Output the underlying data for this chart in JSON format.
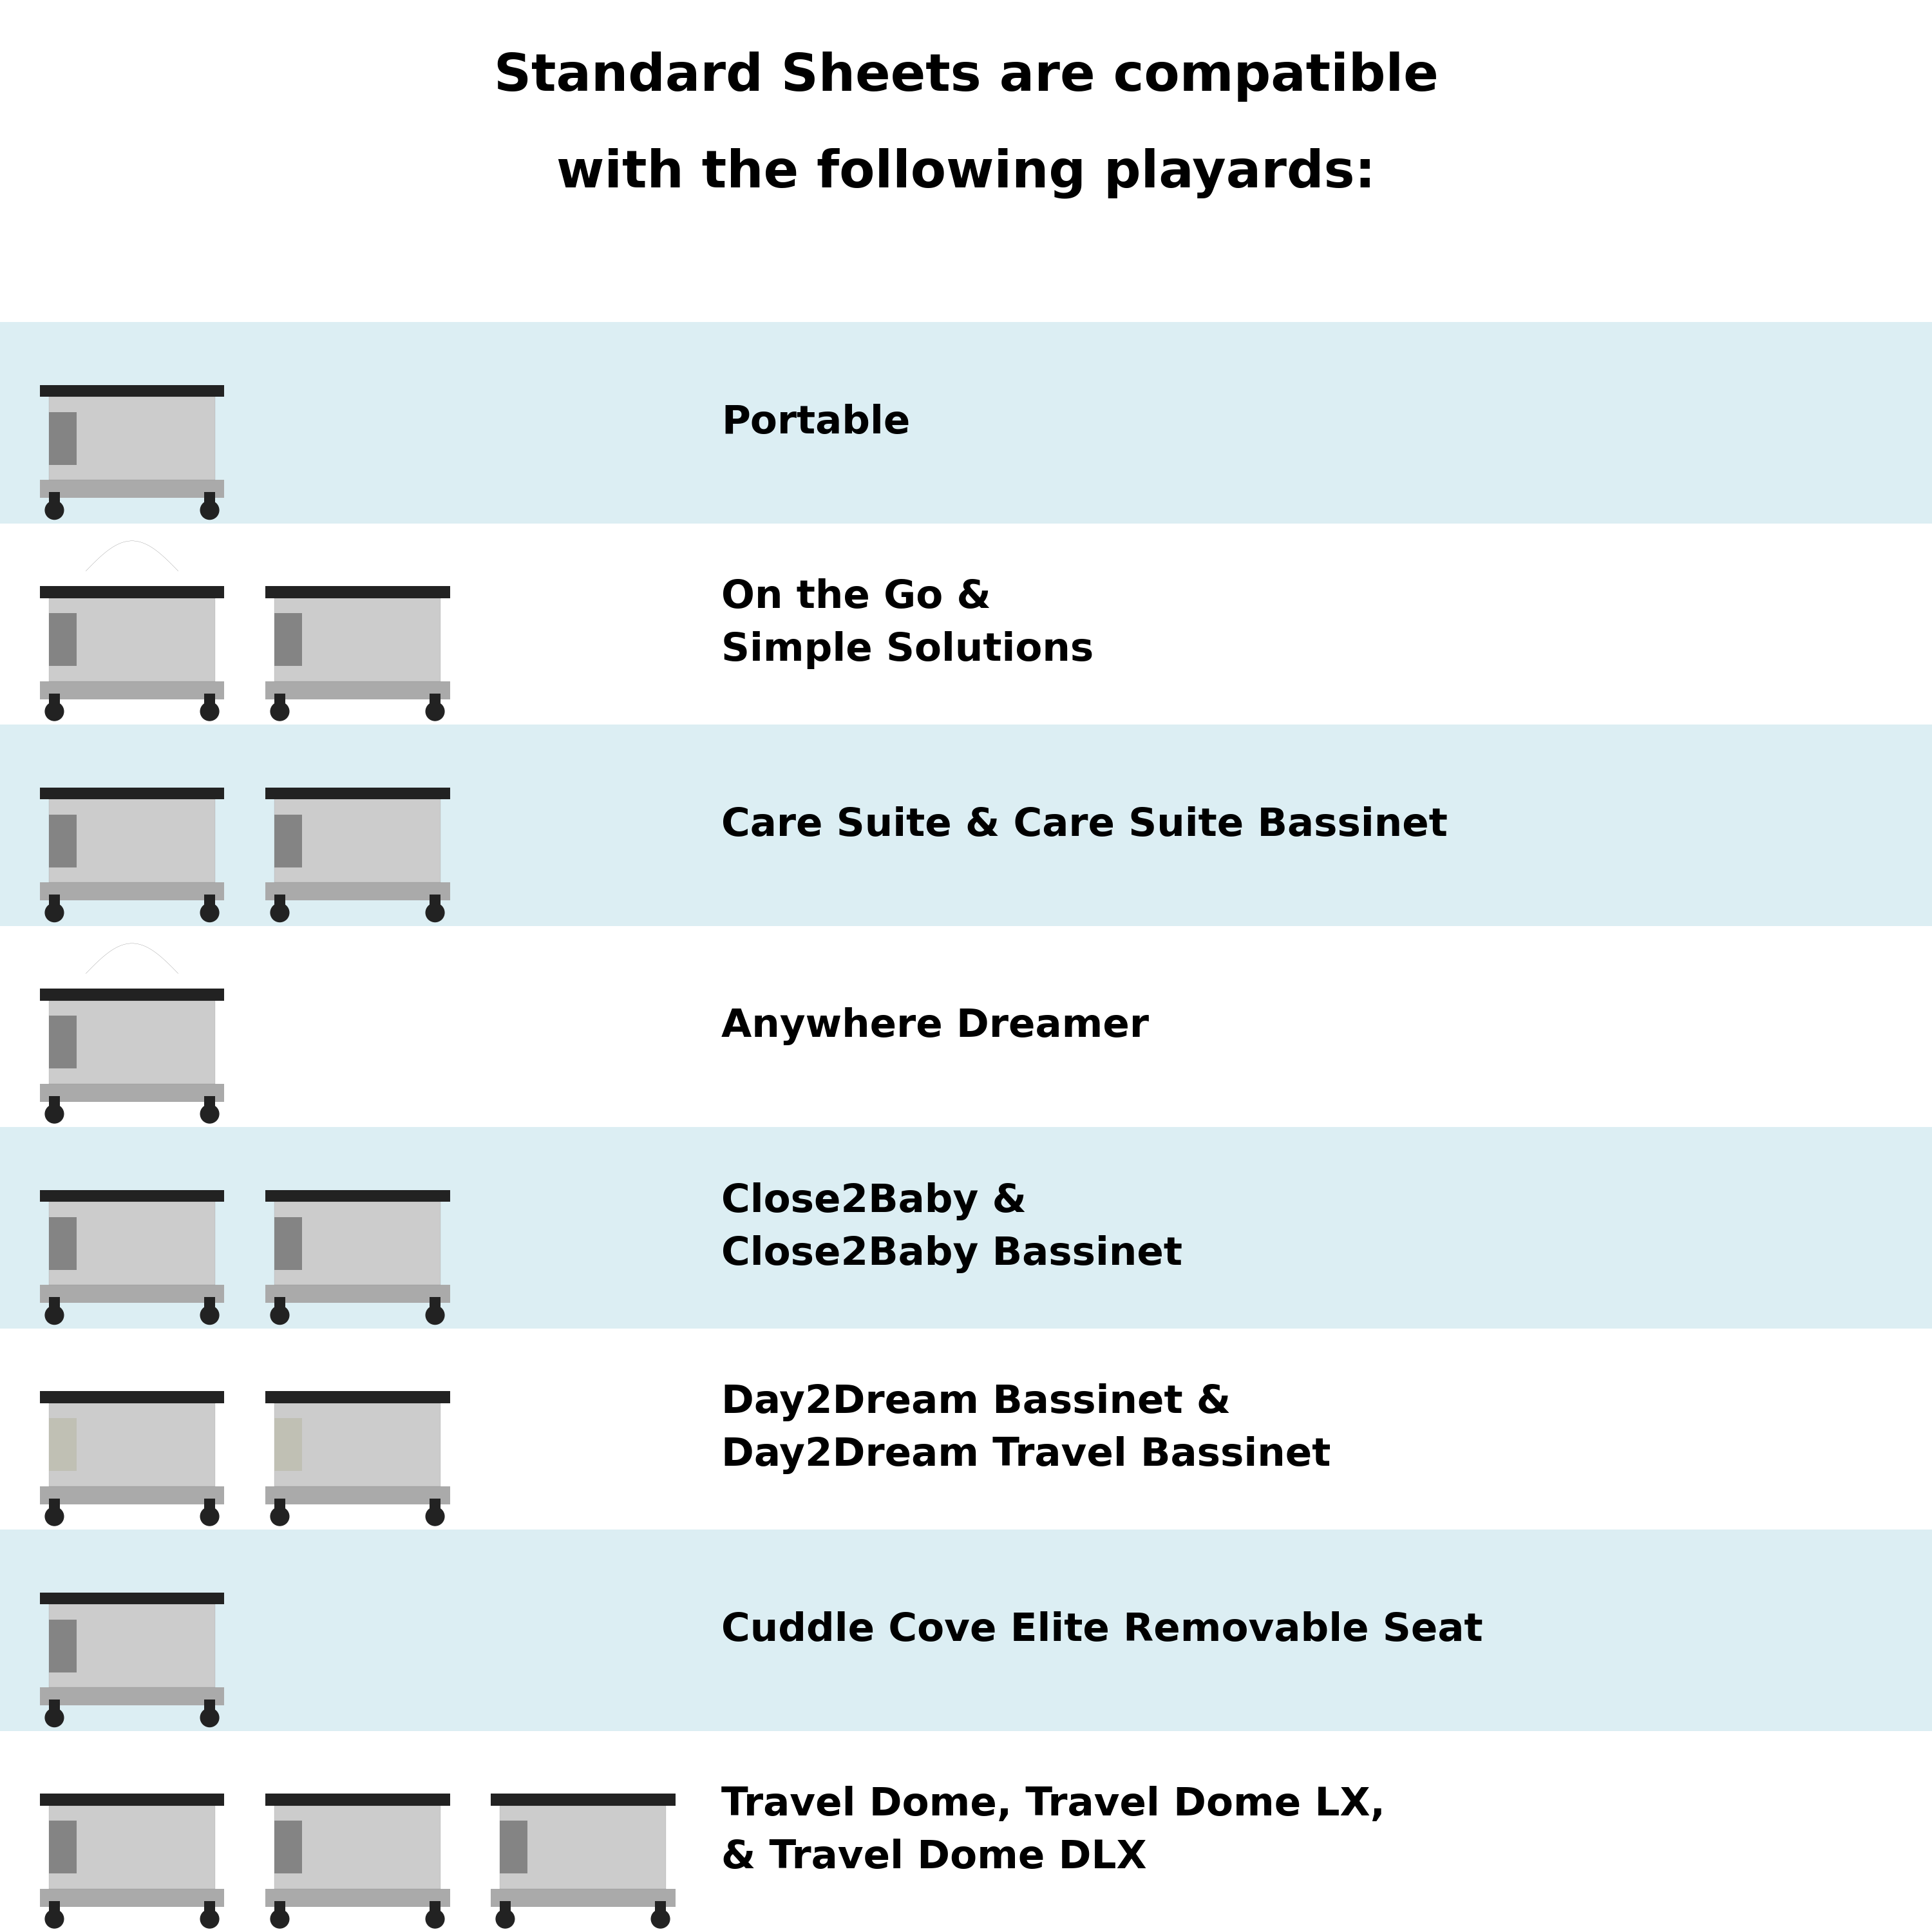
{
  "title_line1": "Standard Sheets are compatible",
  "title_line2": "with the following playards:",
  "title_fontsize": 58,
  "title_fontweight": "bold",
  "label_fontsize": 44,
  "bg_color": "#ffffff",
  "row_bg_colors": [
    "#dceef3",
    "#ffffff",
    "#dceef3",
    "#ffffff",
    "#dceef3",
    "#ffffff",
    "#dceef3",
    "#ffffff"
  ],
  "rows": [
    {
      "label": "Portable",
      "num_images": 1
    },
    {
      "label": "On the Go &\nSimple Solutions",
      "num_images": 2
    },
    {
      "label": "Care Suite & Care Suite Bassinet",
      "num_images": 2
    },
    {
      "label": "Anywhere Dreamer",
      "num_images": 1
    },
    {
      "label": "Close2Baby &\nClose2Baby Bassinet",
      "num_images": 2
    },
    {
      "label": "Day2Dream Bassinet &\nDay2Dream Travel Bassinet",
      "num_images": 2
    },
    {
      "label": "Cuddle Cove Elite Removable Seat",
      "num_images": 1
    },
    {
      "label": "Travel Dome, Travel Dome LX,\n& Travel Dome DLX",
      "num_images": 3
    }
  ]
}
